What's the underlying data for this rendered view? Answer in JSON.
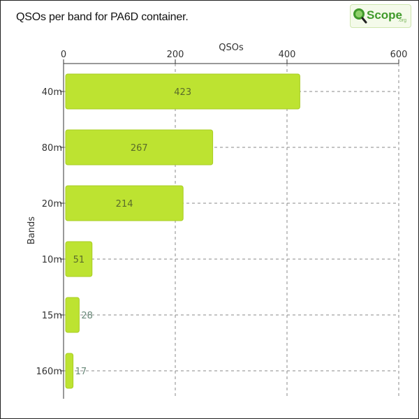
{
  "header": {
    "title": "QSOs per band for PA6D container.",
    "logo_text": "Scope",
    "logo_suffix": ".org"
  },
  "colors": {
    "bar": "#bde331",
    "bar_edge": "#a8cc22",
    "grid": "#8a8a8a",
    "axis": "#333333",
    "label_inside": "#5a6b2a",
    "label_outside": "#6a8a7a",
    "logo_green": "#3f9a2a"
  },
  "chart_data": {
    "type": "bar",
    "orientation": "horizontal",
    "xlabel": "QSOs",
    "ylabel": "Bands",
    "xlim": [
      0,
      600
    ],
    "xticks": [
      0,
      200,
      400,
      600
    ],
    "grid": true,
    "categories": [
      "40m",
      "80m",
      "20m",
      "10m",
      "15m",
      "160m"
    ],
    "values": [
      423,
      267,
      214,
      51,
      28,
      17
    ]
  }
}
